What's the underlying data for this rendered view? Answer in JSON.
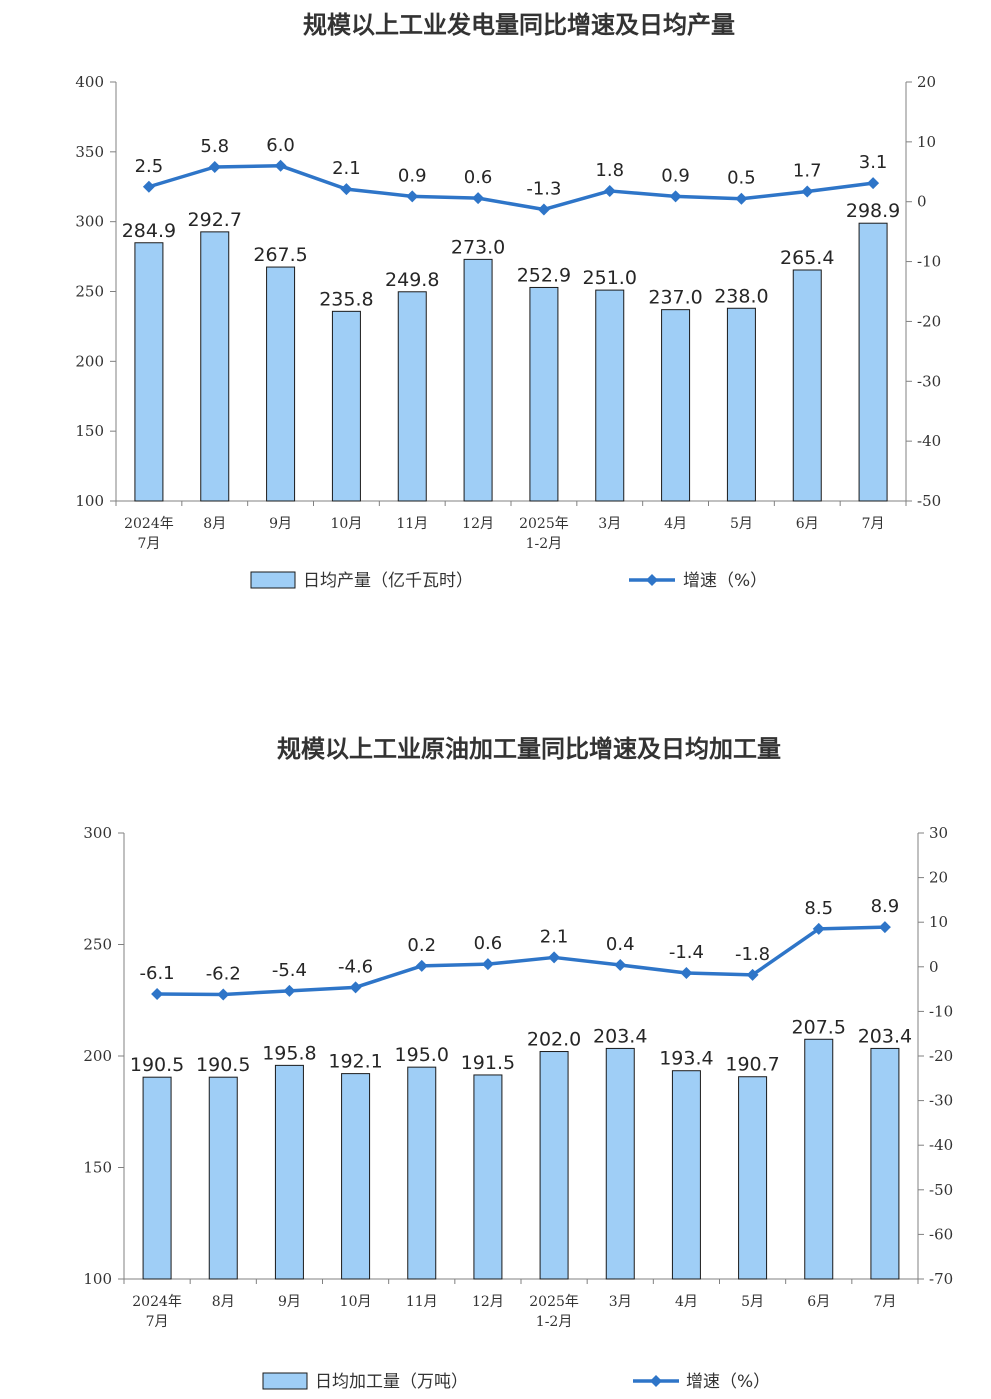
{
  "chart_data": [
    {
      "type": "bar",
      "title": "规模以上工业发电量同比增速及日均产量",
      "categories": [
        [
          "2024年",
          "7月"
        ],
        [
          "8月"
        ],
        [
          "9月"
        ],
        [
          "10月"
        ],
        [
          "11月"
        ],
        [
          "12月"
        ],
        [
          "2025年",
          "1-2月"
        ],
        [
          "3月"
        ],
        [
          "4月"
        ],
        [
          "5月"
        ],
        [
          "6月"
        ],
        [
          "7月"
        ]
      ],
      "series": [
        {
          "name": "日均产量（亿千瓦时）",
          "type": "bar",
          "axis": "left",
          "values": [
            284.9,
            292.7,
            267.5,
            235.8,
            249.8,
            273.0,
            252.9,
            251.0,
            237.0,
            238.0,
            265.4,
            298.9
          ],
          "labels": [
            "284.9",
            "292.7",
            "267.5",
            "235.8",
            "249.8",
            "273.0",
            "252.9",
            "251.0",
            "237.0",
            "238.0",
            "265.4",
            "298.9"
          ]
        },
        {
          "name": "增速（%）",
          "type": "line",
          "axis": "right",
          "values": [
            2.5,
            5.8,
            6.0,
            2.1,
            0.9,
            0.6,
            -1.3,
            1.8,
            0.9,
            0.5,
            1.7,
            3.1
          ],
          "labels": [
            "2.5",
            "5.8",
            "6.0",
            "2.1",
            "0.9",
            "0.6",
            "-1.3",
            "1.8",
            "0.9",
            "0.5",
            "1.7",
            "3.1"
          ]
        }
      ],
      "y_left": {
        "range": [
          100,
          400
        ],
        "ticks": [
          "100",
          "150",
          "200",
          "250",
          "300",
          "350",
          "400"
        ]
      },
      "y_right": {
        "range": [
          -50,
          20
        ],
        "ticks": [
          "-50",
          "-40",
          "-30",
          "-20",
          "-10",
          "0",
          "10",
          "20"
        ]
      },
      "grid": false,
      "legend_position": "bottom"
    },
    {
      "type": "bar",
      "title": "规模以上工业原油加工量同比增速及日均加工量",
      "categories": [
        [
          "2024年",
          "7月"
        ],
        [
          "8月"
        ],
        [
          "9月"
        ],
        [
          "10月"
        ],
        [
          "11月"
        ],
        [
          "12月"
        ],
        [
          "2025年",
          "1-2月"
        ],
        [
          "3月"
        ],
        [
          "4月"
        ],
        [
          "5月"
        ],
        [
          "6月"
        ],
        [
          "7月"
        ]
      ],
      "series": [
        {
          "name": "日均加工量（万吨）",
          "type": "bar",
          "axis": "left",
          "values": [
            190.5,
            190.5,
            195.8,
            192.1,
            195.0,
            191.5,
            202.0,
            203.4,
            193.4,
            190.7,
            207.5,
            203.4
          ],
          "labels": [
            "190.5",
            "190.5",
            "195.8",
            "192.1",
            "195.0",
            "191.5",
            "202.0",
            "203.4",
            "193.4",
            "190.7",
            "207.5",
            "203.4"
          ]
        },
        {
          "name": "增速（%）",
          "type": "line",
          "axis": "right",
          "values": [
            -6.1,
            -6.2,
            -5.4,
            -4.6,
            0.2,
            0.6,
            2.1,
            0.4,
            -1.4,
            -1.8,
            8.5,
            8.9
          ],
          "labels": [
            "-6.1",
            "-6.2",
            "-5.4",
            "-4.6",
            "0.2",
            "0.6",
            "2.1",
            "0.4",
            "-1.4",
            "-1.8",
            "8.5",
            "8.9"
          ]
        }
      ],
      "y_left": {
        "range": [
          100,
          300
        ],
        "ticks": [
          "100",
          "150",
          "200",
          "250",
          "300"
        ]
      },
      "y_right": {
        "range": [
          -70,
          30
        ],
        "ticks": [
          "-70",
          "-60",
          "-50",
          "-40",
          "-30",
          "-20",
          "-10",
          "0",
          "10",
          "20",
          "30"
        ]
      },
      "grid": false,
      "legend_position": "bottom"
    }
  ],
  "colors": {
    "bar_fill": "#9fcef6",
    "bar_stroke": "#1a1a1a",
    "line": "#2e75c8",
    "axis": "#808080"
  }
}
